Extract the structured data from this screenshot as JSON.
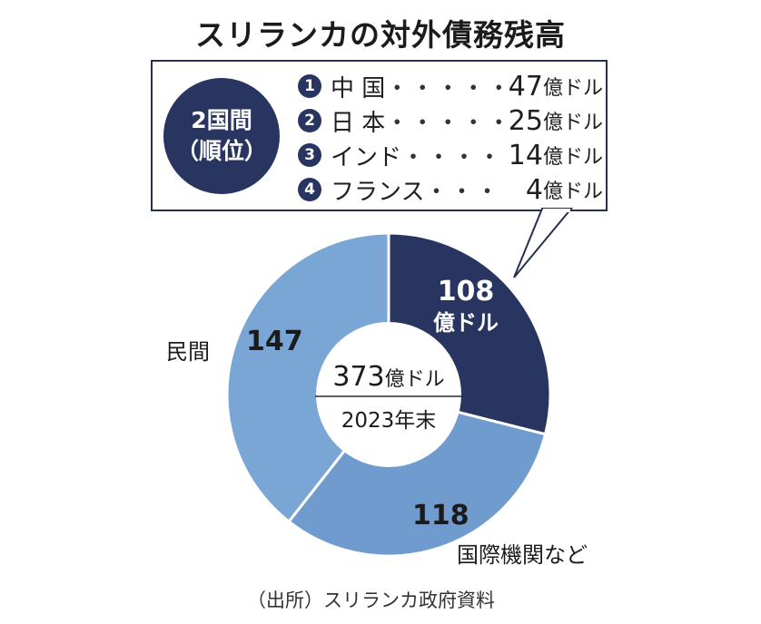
{
  "title": "スリランカの対外債務残高",
  "callout": {
    "badge_line1": "2国間",
    "badge_line2": "（順位）",
    "items": [
      {
        "rank": "1",
        "country": "中 国",
        "dots": "・・・・・・",
        "value": "47",
        "unit": "億ドル"
      },
      {
        "rank": "2",
        "country": "日 本",
        "dots": "・・・・・・",
        "value": "25",
        "unit": "億ドル"
      },
      {
        "rank": "3",
        "country": "インド",
        "dots": "・・・・・",
        "value": "14",
        "unit": "億ドル"
      },
      {
        "rank": "4",
        "country": "フランス",
        "dots": "・・・",
        "value": "4",
        "unit": "億ドル"
      }
    ]
  },
  "center": {
    "total": "373",
    "unit": "億ドル",
    "period": "2023年末"
  },
  "labels": {
    "bilateral_value": "108",
    "bilateral_unit": "億ドル",
    "multilateral_value": "118",
    "multilateral_name": "国際機関など",
    "private_value": "147",
    "private_name": "民間"
  },
  "source": "（出所）スリランカ政府資料",
  "chart_data": {
    "type": "pie",
    "donut": true,
    "title": "スリランカの対外債務残高",
    "unit": "億ドル",
    "total": 373,
    "categories": [
      "2国間",
      "国際機関など",
      "民間"
    ],
    "values": [
      108,
      118,
      147
    ],
    "colors": [
      "#283561",
      "#6f9bce",
      "#7aa6d6"
    ]
  },
  "colors": {
    "dark_navy": "#283561",
    "light_blue": "#6f9bce",
    "lighter_blue": "#7aa6d6",
    "separator": "#ffffff"
  }
}
